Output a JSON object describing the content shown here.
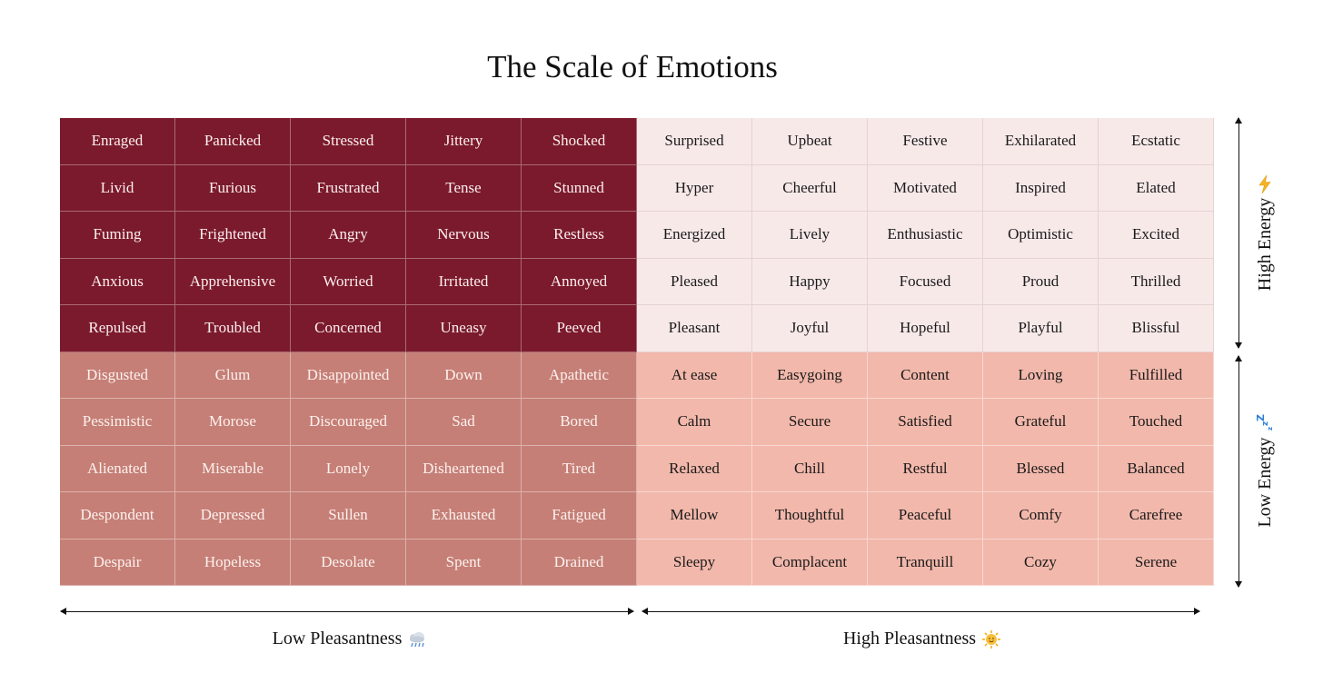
{
  "title": "The Scale of Emotions",
  "axes": {
    "x_low": "Low Pleasantness",
    "x_high": "High Pleasantness",
    "y_high": "High Energy",
    "y_low": "Low Energy"
  },
  "icons": {
    "x_low": "rain-cloud-icon",
    "x_high": "sun-icon",
    "y_high": "lightning-icon",
    "y_low": "sleep-zzz-icon"
  },
  "colors": {
    "high_energy_unpleasant": "#7b1a2c",
    "high_energy_pleasant": "#f8e9e9",
    "low_energy_unpleasant": "#c57f76",
    "low_energy_pleasant": "#f2b8ab"
  },
  "grid": [
    [
      "Enraged",
      "Panicked",
      "Stressed",
      "Jittery",
      "Shocked",
      "Surprised",
      "Upbeat",
      "Festive",
      "Exhilarated",
      "Ecstatic"
    ],
    [
      "Livid",
      "Furious",
      "Frustrated",
      "Tense",
      "Stunned",
      "Hyper",
      "Cheerful",
      "Motivated",
      "Inspired",
      "Elated"
    ],
    [
      "Fuming",
      "Frightened",
      "Angry",
      "Nervous",
      "Restless",
      "Energized",
      "Lively",
      "Enthusiastic",
      "Optimistic",
      "Excited"
    ],
    [
      "Anxious",
      "Apprehensive",
      "Worried",
      "Irritated",
      "Annoyed",
      "Pleased",
      "Happy",
      "Focused",
      "Proud",
      "Thrilled"
    ],
    [
      "Repulsed",
      "Troubled",
      "Concerned",
      "Uneasy",
      "Peeved",
      "Pleasant",
      "Joyful",
      "Hopeful",
      "Playful",
      "Blissful"
    ],
    [
      "Disgusted",
      "Glum",
      "Disappointed",
      "Down",
      "Apathetic",
      "At ease",
      "Easygoing",
      "Content",
      "Loving",
      "Fulfilled"
    ],
    [
      "Pessimistic",
      "Morose",
      "Discouraged",
      "Sad",
      "Bored",
      "Calm",
      "Secure",
      "Satisfied",
      "Grateful",
      "Touched"
    ],
    [
      "Alienated",
      "Miserable",
      "Lonely",
      "Disheartened",
      "Tired",
      "Relaxed",
      "Chill",
      "Restful",
      "Blessed",
      "Balanced"
    ],
    [
      "Despondent",
      "Depressed",
      "Sullen",
      "Exhausted",
      "Fatigued",
      "Mellow",
      "Thoughtful",
      "Peaceful",
      "Comfy",
      "Carefree"
    ],
    [
      "Despair",
      "Hopeless",
      "Desolate",
      "Spent",
      "Drained",
      "Sleepy",
      "Complacent",
      "Tranquill",
      "Cozy",
      "Serene"
    ]
  ]
}
